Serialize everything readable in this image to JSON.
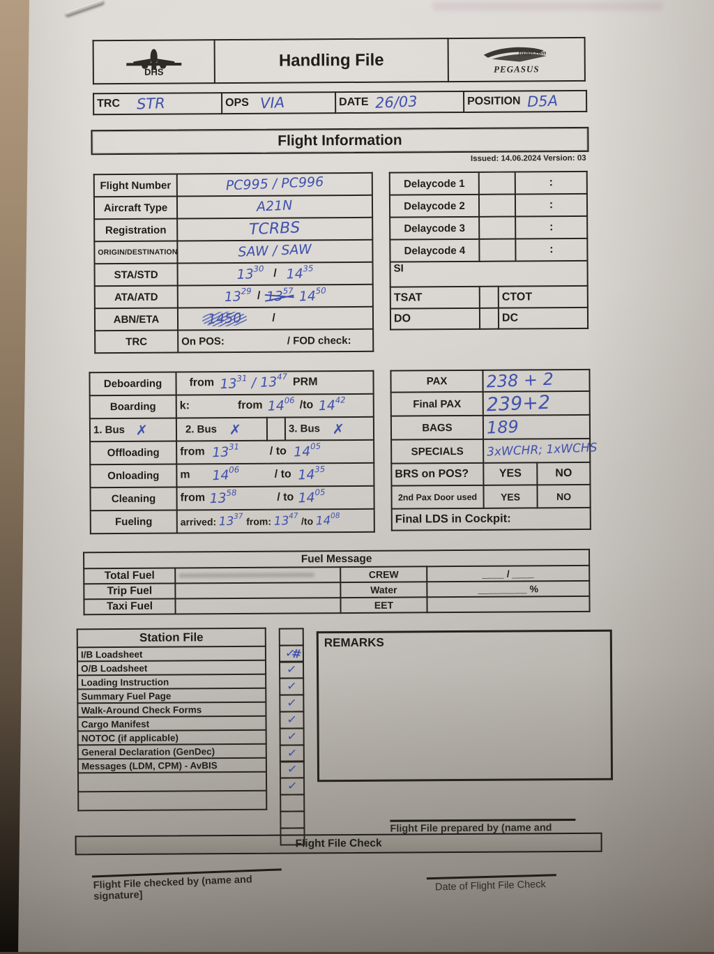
{
  "colors": {
    "handwriting": "#3f51ad",
    "paper": "#d5d1cc",
    "border": "#26231f",
    "check_bar": "#a8a49f"
  },
  "header": {
    "title": "Handling File",
    "dhs": "DHS",
    "pegasus_top": "flypgs.com",
    "pegasus_name": "PEGASUS"
  },
  "meta": {
    "trc_label": "TRC",
    "trc": "STR",
    "ops_label": "OPS",
    "ops": "VIA",
    "date_label": "DATE",
    "date": "26/03",
    "position_label": "POSITION",
    "position": "D5A"
  },
  "section": {
    "title": "Flight Information",
    "issued": "Issued: 14.06.2024 Version: 03"
  },
  "flight": {
    "flight_number_label": "Flight Number",
    "flight_number": "PC995 / PC996",
    "aircraft_type_label": "Aircraft Type",
    "aircraft_type": "A21N",
    "registration_label": "Registration",
    "registration": "TCRBS",
    "origin_destination_label": "ORIGIN/DESTINATION",
    "origin_destination": "SAW  /  SAW",
    "sta_std_label": "STA/STD",
    "sta": "13^{30}",
    "slash": "/",
    "std": "14^{35}",
    "ata_atd_label": "ATA/ATD",
    "ata": "13^{29}",
    "atd_struck": "13^{57}",
    "atd": "14^{50}",
    "abn_eta_label": "ABN/ETA",
    "abn_struck": "1450",
    "trc_label": "TRC",
    "on_pos": "On POS:",
    "fod": "/  FOD check:"
  },
  "delay": {
    "rows": [
      {
        "label": "Delaycode 1"
      },
      {
        "label": "Delaycode 2"
      },
      {
        "label": "Delaycode 3"
      },
      {
        "label": "Delaycode 4"
      }
    ],
    "colon": ":",
    "si": "SI",
    "tsat": "TSAT",
    "ctot": "CTOT",
    "do_label": "DO",
    "dc_label": "DC"
  },
  "ground": {
    "deboarding_label": "Deboarding",
    "deboarding_from": "from",
    "deboarding_times": "13^{31} / 13^{47}",
    "deboarding_prm": "PRM",
    "boarding_label": "Boarding",
    "boarding_k": "k:",
    "boarding_from": "from",
    "boarding_t1": "14^{06}",
    "boarding_to": "/to",
    "boarding_t2": "14^{42}",
    "bus1_label": "1. Bus",
    "bus1_mark": "✗",
    "bus2_label": "2. Bus",
    "bus2_mark": "✗",
    "bus3_label": "3. Bus",
    "bus3_mark": "✗",
    "offloading_label": "Offloading",
    "offloading_from": "from",
    "offloading_t1": "13^{31}",
    "offloading_to": "/ to",
    "offloading_t2": "14^{05}",
    "onloading_label": "Onloading",
    "onloading_m": "m",
    "onloading_t1": "14^{06}",
    "onloading_to": "/ to",
    "onloading_t2": "14^{35}",
    "cleaning_label": "Cleaning",
    "cleaning_from": "from",
    "cleaning_t1": "13^{58}",
    "cleaning_to": "/ to",
    "cleaning_t2": "14^{05}",
    "fueling_label": "Fueling",
    "fueling_arrived": "arrived:",
    "fueling_t1": "13^{37}",
    "fueling_from": "from:",
    "fueling_t2": "13^{47}",
    "fueling_to": "/to",
    "fueling_t3": "14^{08}"
  },
  "pax": {
    "pax_label": "PAX",
    "pax": "238 + 2",
    "final_label": "Final PAX",
    "final": "239+2",
    "bags_label": "BAGS",
    "bags": "189",
    "specials_label": "SPECIALS",
    "specials": "3xWCHR; 1xWCHS",
    "brs_label": "BRS on POS?",
    "yes": "YES",
    "no": "NO",
    "door_label": "2nd Pax Door used",
    "lds_label": "Final LDS in Cockpit:"
  },
  "fuel": {
    "title": "Fuel Message",
    "total_label": "Total Fuel",
    "trip_label": "Trip Fuel",
    "taxi_label": "Taxi Fuel",
    "crew_label": "CREW",
    "water_label": "Water",
    "eet_label": "EET",
    "crew_line": "____ / ____",
    "water_line": "_________ %"
  },
  "station": {
    "title": "Station File",
    "items": [
      "I/B Loadsheet",
      "O/B Loadsheet",
      "Loading Instruction",
      "Summary Fuel Page",
      "Walk-Around Check Forms",
      "Cargo Manifest",
      "NOTOC (if applicable)",
      "General Declaration (GenDec)",
      "Messages (LDM, CPM) - AvBIS"
    ],
    "checks": [
      "✓#",
      "✓",
      "✓",
      "✓",
      "✓",
      "✓",
      "✓",
      "✓",
      "✓"
    ]
  },
  "remarks": {
    "title": "REMARKS"
  },
  "footer": {
    "prepared": "Flight File prepared by (name and signature",
    "check_bar": "Flight File Check",
    "checked": "Flight File checked by (name and signature]",
    "date_check": "Date of Flight File Check"
  }
}
